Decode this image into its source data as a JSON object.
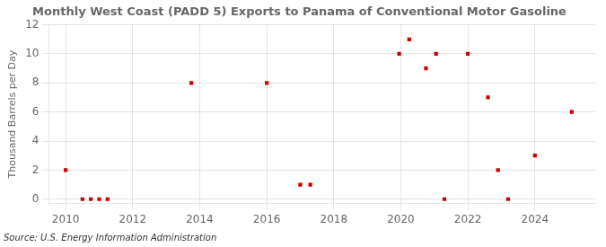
{
  "chart_data": {
    "type": "scatter",
    "title": "Monthly West Coast (PADD 5) Exports to Panama of Conventional Motor Gasoline",
    "ylabel": "Thousand Barrels per Day",
    "source": "Source: U.S. Energy Information Administration",
    "x": [
      2010.0,
      2010.5,
      2010.75,
      2011.0,
      2011.25,
      2013.75,
      2016.0,
      2017.0,
      2017.3,
      2019.95,
      2020.25,
      2020.75,
      2021.05,
      2021.3,
      2022.0,
      2022.6,
      2022.9,
      2023.2,
      2024.0,
      2025.1
    ],
    "values": [
      2,
      0,
      0,
      0,
      0,
      8,
      8,
      1,
      1,
      10,
      11,
      9,
      10,
      0,
      10,
      7,
      2,
      0,
      3,
      6
    ],
    "color": "#cc0000",
    "marker": "square",
    "xlim": [
      2009.5,
      2025.8
    ],
    "ylim": [
      -0.3,
      12
    ],
    "xticks": [
      2010,
      2012,
      2014,
      2016,
      2018,
      2020,
      2022,
      2024
    ],
    "yticks": [
      0,
      2,
      4,
      6,
      8,
      10,
      12
    ],
    "grid": true
  }
}
